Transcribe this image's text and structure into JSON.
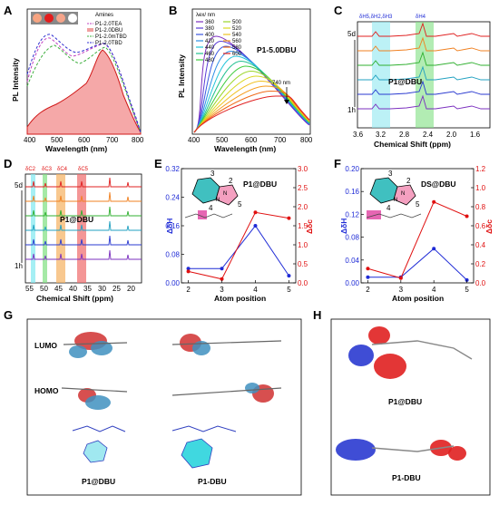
{
  "panels": {
    "A": {
      "letter": "A",
      "ylabel": "PL Intensity",
      "xlabel": "Wavelength (nm)",
      "xticks": [
        "400",
        "500",
        "600",
        "700",
        "800"
      ],
      "legend_title": "Amines",
      "legend": [
        {
          "name": "P1-2.0TEA",
          "color": "#c040c0"
        },
        {
          "name": "P1-2.0DBU",
          "color": "#f0a0a0"
        },
        {
          "name": "P1-2.0mTBD",
          "color": "#40b040"
        },
        {
          "name": "P1-2.0TBD",
          "color": "#3030d0"
        }
      ],
      "vial_colors": [
        "#f7a481",
        "#e31d1d",
        "#f5a48a",
        "#ffffff"
      ]
    },
    "B": {
      "letter": "B",
      "ylabel": "PL Intensity",
      "xlabel": "Wavelength (nm)",
      "xticks": [
        "400",
        "500",
        "600",
        "700",
        "800"
      ],
      "legend_title": "λex/ nm",
      "series": [
        {
          "name": "360",
          "color": "#7b2fbf"
        },
        {
          "name": "380",
          "color": "#5a3cd6"
        },
        {
          "name": "400",
          "color": "#3a55e0"
        },
        {
          "name": "420",
          "color": "#2d8fe6"
        },
        {
          "name": "440",
          "color": "#1fc4d8"
        },
        {
          "name": "460",
          "color": "#20c090"
        },
        {
          "name": "480",
          "color": "#3ccc3c"
        },
        {
          "name": "500",
          "color": "#9bd62a"
        },
        {
          "name": "520",
          "color": "#d8d820"
        },
        {
          "name": "540",
          "color": "#f0c020"
        },
        {
          "name": "560",
          "color": "#f59a1a"
        },
        {
          "name": "580",
          "color": "#f06a18"
        },
        {
          "name": "600",
          "color": "#e02020"
        }
      ],
      "sample": "P1-5.0DBU",
      "annotation": "740 nm"
    },
    "C": {
      "letter": "C",
      "xlabel": "Chemical Shift (ppm)",
      "xticks": [
        "3.6",
        "3.2",
        "2.8",
        "2.4",
        "2.0",
        "1.6"
      ],
      "peaks": "δH5,δH2,δH3",
      "peak4": "δH4",
      "time_top": "5d",
      "time_bottom": "1h",
      "sample": "P1@DBU"
    },
    "D": {
      "letter": "D",
      "xlabel": "Chemical Shift (ppm)",
      "xticks": [
        "55",
        "50",
        "45",
        "40",
        "35",
        "30",
        "25",
        "20"
      ],
      "peaks": [
        "δC2",
        "δC3",
        "δC4",
        "δC5"
      ],
      "time_top": "5d",
      "time_bottom": "1h",
      "sample": "P1@DBU"
    },
    "E": {
      "letter": "E",
      "ylabel_left": "ΔδH",
      "ylabel_right": "Δδc",
      "xlabel": "Atom position",
      "xticks": [
        "2",
        "3",
        "4",
        "5"
      ],
      "yticks_left": [
        "0.00",
        "0.08",
        "0.16",
        "0.24",
        "0.32"
      ],
      "yticks_right": [
        "0.0",
        "0.5",
        "1.0",
        "1.5",
        "2.0",
        "2.5",
        "3.0"
      ],
      "sample": "P1@DBU",
      "ring_labels": [
        "3",
        "2",
        "4",
        "5"
      ]
    },
    "F": {
      "letter": "F",
      "ylabel_left": "ΔδH",
      "ylabel_right": "Δδc",
      "xlabel": "Atom position",
      "xticks": [
        "2",
        "3",
        "4",
        "5"
      ],
      "yticks_left": [
        "0.00",
        "0.04",
        "0.08",
        "0.12",
        "0.16",
        "0.20"
      ],
      "yticks_right": [
        "0.0",
        "0.2",
        "0.4",
        "0.6",
        "0.8",
        "1.0",
        "1.2"
      ],
      "sample": "DS@DBU",
      "ring_labels": [
        "3",
        "2",
        "4",
        "5"
      ]
    },
    "G": {
      "letter": "G",
      "lumo": "LUMO",
      "homo": "HOMO",
      "cap_left": "P1@DBU",
      "cap_right": "P1-DBU"
    },
    "H": {
      "letter": "H",
      "cap_top": "P1@DBU",
      "cap_bottom": "P1-DBU"
    }
  },
  "chart_data": [
    {
      "type": "line",
      "panel": "E",
      "x": [
        2,
        3,
        4,
        5
      ],
      "series": [
        {
          "axis": "left",
          "color": "#1f2bd6",
          "values": [
            0.04,
            0.04,
            0.16,
            0.02
          ]
        },
        {
          "axis": "right",
          "color": "#e01010",
          "values": [
            0.3,
            0.1,
            1.85,
            1.7
          ]
        }
      ],
      "ylim_left": [
        0,
        0.32
      ],
      "ylim_right": [
        0,
        3.0
      ]
    },
    {
      "type": "line",
      "panel": "F",
      "x": [
        2,
        3,
        4,
        5
      ],
      "series": [
        {
          "axis": "left",
          "color": "#1f2bd6",
          "values": [
            0.01,
            0.01,
            0.06,
            0.005
          ]
        },
        {
          "axis": "right",
          "color": "#e01010",
          "values": [
            0.15,
            0.05,
            0.85,
            0.7
          ]
        }
      ],
      "ylim_left": [
        0,
        0.2
      ],
      "ylim_right": [
        0,
        1.2
      ]
    }
  ]
}
